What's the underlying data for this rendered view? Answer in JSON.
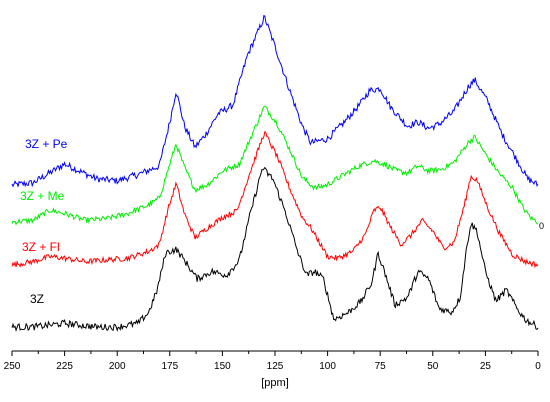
{
  "chart_data": {
    "type": "line",
    "xlabel": "[ppm]",
    "x_reversed": true,
    "xlim": [
      0,
      250
    ],
    "xticks": [
      250,
      225,
      200,
      175,
      150,
      125,
      100,
      75,
      50,
      25,
      0
    ],
    "grid": false,
    "series": [
      {
        "name": "3Z + Pe",
        "color": "#0000ff",
        "noise": 1.6,
        "points": [
          [
            250,
            0
          ],
          [
            240,
            1
          ],
          [
            225,
            10
          ],
          [
            210,
            3
          ],
          [
            200,
            2
          ],
          [
            190,
            5
          ],
          [
            180,
            9
          ],
          [
            175,
            30
          ],
          [
            172,
            45
          ],
          [
            168,
            28
          ],
          [
            163,
            18
          ],
          [
            158,
            24
          ],
          [
            152,
            34
          ],
          [
            145,
            38
          ],
          [
            138,
            62
          ],
          [
            130,
            80
          ],
          [
            125,
            66
          ],
          [
            118,
            45
          ],
          [
            112,
            28
          ],
          [
            108,
            20
          ],
          [
            100,
            22
          ],
          [
            92,
            30
          ],
          [
            85,
            38
          ],
          [
            80,
            45
          ],
          [
            75,
            46
          ],
          [
            70,
            37
          ],
          [
            62,
            28
          ],
          [
            57,
            30
          ],
          [
            52,
            27
          ],
          [
            47,
            29
          ],
          [
            40,
            35
          ],
          [
            33,
            47
          ],
          [
            30,
            50
          ],
          [
            24,
            40
          ],
          [
            17,
            24
          ],
          [
            10,
            12
          ],
          [
            5,
            3
          ],
          [
            0,
            0
          ]
        ]
      },
      {
        "name": "3Z + Me",
        "color": "#00ee00",
        "noise": 1.6,
        "points": [
          [
            250,
            0
          ],
          [
            240,
            1
          ],
          [
            232,
            7
          ],
          [
            225,
            5
          ],
          [
            215,
            1
          ],
          [
            205,
            2
          ],
          [
            195,
            5
          ],
          [
            185,
            10
          ],
          [
            180,
            14
          ],
          [
            176,
            30
          ],
          [
            172,
            46
          ],
          [
            168,
            32
          ],
          [
            163,
            19
          ],
          [
            157,
            22
          ],
          [
            150,
            30
          ],
          [
            142,
            34
          ],
          [
            135,
            54
          ],
          [
            130,
            68
          ],
          [
            124,
            58
          ],
          [
            117,
            40
          ],
          [
            112,
            26
          ],
          [
            106,
            20
          ],
          [
            100,
            22
          ],
          [
            92,
            28
          ],
          [
            85,
            33
          ],
          [
            78,
            36
          ],
          [
            73,
            34
          ],
          [
            67,
            30
          ],
          [
            62,
            29
          ],
          [
            57,
            33
          ],
          [
            52,
            30
          ],
          [
            46,
            31
          ],
          [
            40,
            35
          ],
          [
            33,
            47
          ],
          [
            30,
            50
          ],
          [
            25,
            40
          ],
          [
            18,
            28
          ],
          [
            12,
            20
          ],
          [
            7,
            8
          ],
          [
            3,
            2
          ],
          [
            0,
            0
          ]
        ]
      },
      {
        "name": "3Z + Fl",
        "color": "#ff0000",
        "noise": 1.6,
        "points": [
          [
            250,
            0
          ],
          [
            240,
            2
          ],
          [
            232,
            5
          ],
          [
            225,
            4
          ],
          [
            215,
            2
          ],
          [
            205,
            3
          ],
          [
            195,
            4
          ],
          [
            185,
            8
          ],
          [
            180,
            12
          ],
          [
            176,
            32
          ],
          [
            172,
            48
          ],
          [
            168,
            30
          ],
          [
            163,
            16
          ],
          [
            157,
            22
          ],
          [
            150,
            28
          ],
          [
            143,
            32
          ],
          [
            137,
            54
          ],
          [
            130,
            78
          ],
          [
            124,
            64
          ],
          [
            118,
            45
          ],
          [
            112,
            28
          ],
          [
            108,
            22
          ],
          [
            100,
            5
          ],
          [
            95,
            4
          ],
          [
            88,
            8
          ],
          [
            82,
            18
          ],
          [
            78,
            32
          ],
          [
            75,
            34
          ],
          [
            70,
            22
          ],
          [
            65,
            12
          ],
          [
            60,
            18
          ],
          [
            55,
            26
          ],
          [
            50,
            20
          ],
          [
            45,
            10
          ],
          [
            40,
            13
          ],
          [
            35,
            35
          ],
          [
            32,
            52
          ],
          [
            29,
            50
          ],
          [
            24,
            34
          ],
          [
            18,
            18
          ],
          [
            12,
            6
          ],
          [
            6,
            2
          ],
          [
            0,
            0
          ]
        ]
      },
      {
        "name": "3Z",
        "color": "#000000",
        "noise": 1.8,
        "points": [
          [
            250,
            0
          ],
          [
            240,
            0
          ],
          [
            225,
            2
          ],
          [
            210,
            0
          ],
          [
            200,
            0
          ],
          [
            190,
            2
          ],
          [
            185,
            8
          ],
          [
            181,
            20
          ],
          [
            177,
            40
          ],
          [
            172,
            42
          ],
          [
            168,
            36
          ],
          [
            162,
            26
          ],
          [
            155,
            30
          ],
          [
            148,
            28
          ],
          [
            142,
            36
          ],
          [
            137,
            60
          ],
          [
            131,
            86
          ],
          [
            126,
            80
          ],
          [
            120,
            62
          ],
          [
            114,
            40
          ],
          [
            110,
            28
          ],
          [
            106,
            30
          ],
          [
            102,
            26
          ],
          [
            97,
            4
          ],
          [
            90,
            8
          ],
          [
            84,
            14
          ],
          [
            79,
            24
          ],
          [
            76,
            40
          ],
          [
            73,
            30
          ],
          [
            68,
            12
          ],
          [
            62,
            16
          ],
          [
            57,
            30
          ],
          [
            52,
            26
          ],
          [
            47,
            10
          ],
          [
            41,
            8
          ],
          [
            37,
            16
          ],
          [
            34,
            42
          ],
          [
            32,
            56
          ],
          [
            29,
            52
          ],
          [
            25,
            30
          ],
          [
            20,
            14
          ],
          [
            15,
            20
          ],
          [
            10,
            10
          ],
          [
            6,
            4
          ],
          [
            3,
            2
          ],
          [
            0,
            0
          ]
        ]
      }
    ]
  }
}
